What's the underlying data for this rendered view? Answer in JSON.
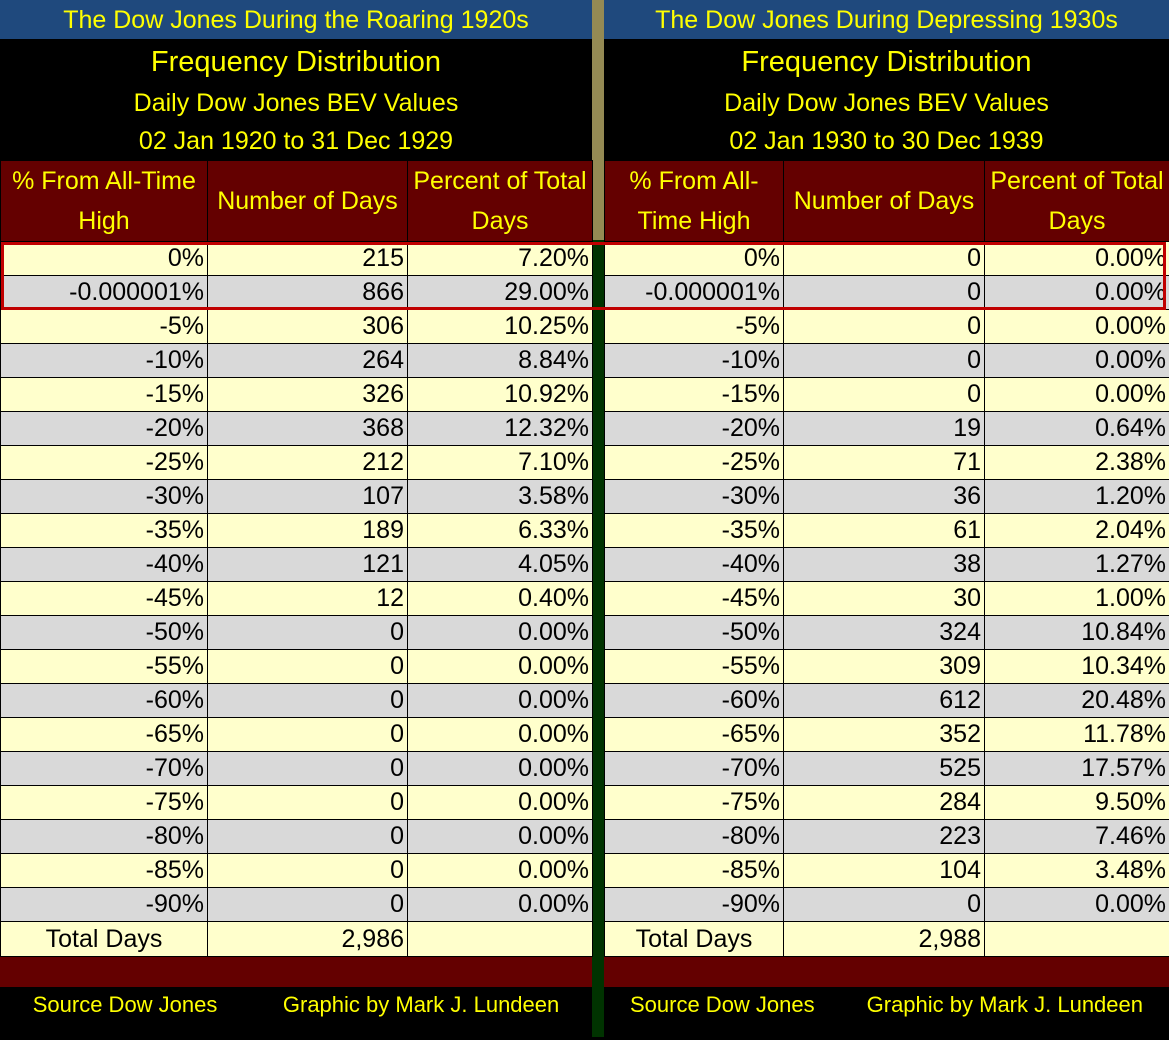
{
  "left": {
    "title": "The Dow Jones During the Roaring 1920s",
    "heading": "Frequency Distribution",
    "subtitle": "Daily Dow Jones BEV Values",
    "range": "02 Jan 1920 to 31 Dec 1929",
    "columns": [
      "% From All-Time High",
      "Number of Days",
      "Percent of Total Days"
    ],
    "rows": [
      [
        "0%",
        "215",
        "7.20%"
      ],
      [
        "-0.000001%",
        "866",
        "29.00%"
      ],
      [
        "-5%",
        "306",
        "10.25%"
      ],
      [
        "-10%",
        "264",
        "8.84%"
      ],
      [
        "-15%",
        "326",
        "10.92%"
      ],
      [
        "-20%",
        "368",
        "12.32%"
      ],
      [
        "-25%",
        "212",
        "7.10%"
      ],
      [
        "-30%",
        "107",
        "3.58%"
      ],
      [
        "-35%",
        "189",
        "6.33%"
      ],
      [
        "-40%",
        "121",
        "4.05%"
      ],
      [
        "-45%",
        "12",
        "0.40%"
      ],
      [
        "-50%",
        "0",
        "0.00%"
      ],
      [
        "-55%",
        "0",
        "0.00%"
      ],
      [
        "-60%",
        "0",
        "0.00%"
      ],
      [
        "-65%",
        "0",
        "0.00%"
      ],
      [
        "-70%",
        "0",
        "0.00%"
      ],
      [
        "-75%",
        "0",
        "0.00%"
      ],
      [
        "-80%",
        "0",
        "0.00%"
      ],
      [
        "-85%",
        "0",
        "0.00%"
      ],
      [
        "-90%",
        "0",
        "0.00%"
      ]
    ],
    "total_label": "Total Days",
    "total_value": "2,986",
    "source": "Source Dow Jones",
    "credit": "Graphic by Mark J. Lundeen"
  },
  "right": {
    "title": "The Dow Jones During Depressing 1930s",
    "heading": "Frequency Distribution",
    "subtitle": "Daily Dow Jones BEV Values",
    "range": "02 Jan 1930 to 30 Dec 1939",
    "columns": [
      "% From All-Time High",
      "Number of Days",
      "Percent of Total Days"
    ],
    "rows": [
      [
        "0%",
        "0",
        "0.00%"
      ],
      [
        "-0.000001%",
        "0",
        "0.00%"
      ],
      [
        "-5%",
        "0",
        "0.00%"
      ],
      [
        "-10%",
        "0",
        "0.00%"
      ],
      [
        "-15%",
        "0",
        "0.00%"
      ],
      [
        "-20%",
        "19",
        "0.64%"
      ],
      [
        "-25%",
        "71",
        "2.38%"
      ],
      [
        "-30%",
        "36",
        "1.20%"
      ],
      [
        "-35%",
        "61",
        "2.04%"
      ],
      [
        "-40%",
        "38",
        "1.27%"
      ],
      [
        "-45%",
        "30",
        "1.00%"
      ],
      [
        "-50%",
        "324",
        "10.84%"
      ],
      [
        "-55%",
        "309",
        "10.34%"
      ],
      [
        "-60%",
        "612",
        "20.48%"
      ],
      [
        "-65%",
        "352",
        "11.78%"
      ],
      [
        "-70%",
        "525",
        "17.57%"
      ],
      [
        "-75%",
        "284",
        "9.50%"
      ],
      [
        "-80%",
        "223",
        "7.46%"
      ],
      [
        "-85%",
        "104",
        "3.48%"
      ],
      [
        "-90%",
        "0",
        "0.00%"
      ]
    ],
    "total_label": "Total Days",
    "total_value": "2,988",
    "source": "Source Dow Jones",
    "credit": "Graphic by Mark J. Lundeen"
  },
  "colors": {
    "title_bg": "#1F497D",
    "header_bg": "#640000",
    "text_yellow": "#FFFF00",
    "row_odd": "#FFFFCC",
    "row_even": "#D9D9D9",
    "highlight": "#C00000",
    "separator_top": "#948A54",
    "separator_bottom": "#003300"
  }
}
